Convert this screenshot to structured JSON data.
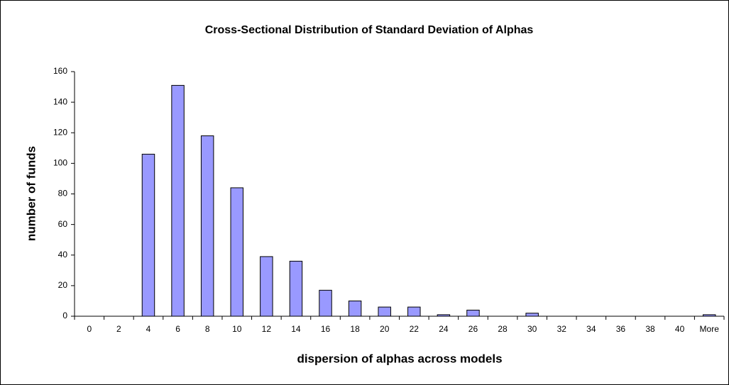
{
  "chart_data": {
    "type": "bar",
    "title": "Cross-Sectional Distribution of Standard Deviation of Alphas",
    "xlabel": "dispersion of alphas across models",
    "ylabel": "number of funds",
    "categories": [
      "0",
      "2",
      "4",
      "6",
      "8",
      "10",
      "12",
      "14",
      "16",
      "18",
      "20",
      "22",
      "24",
      "26",
      "28",
      "30",
      "32",
      "34",
      "36",
      "38",
      "40",
      "More"
    ],
    "values": [
      0,
      0,
      106,
      151,
      118,
      84,
      39,
      36,
      17,
      10,
      6,
      6,
      1,
      4,
      0,
      2,
      0,
      0,
      0,
      0,
      0,
      1
    ],
    "color": "#9999ff",
    "ylim": [
      0,
      160
    ],
    "yticks": [
      0,
      20,
      40,
      60,
      80,
      100,
      120,
      140,
      160
    ],
    "grid": false
  }
}
